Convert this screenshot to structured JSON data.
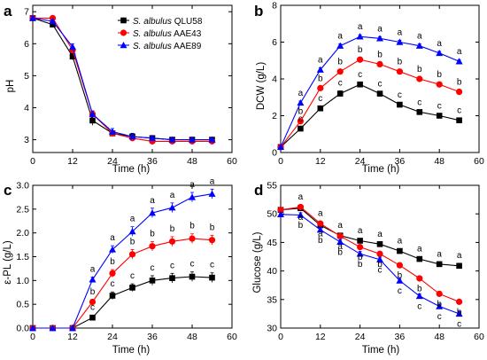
{
  "colors": {
    "QLU58": "#000000",
    "AAE43": "#ff0000",
    "AAE89": "#0000ff"
  },
  "legend": [
    {
      "species": "S. albulus",
      "strain": "QLU58",
      "marker": "square",
      "color": "#000000"
    },
    {
      "species": "S. albulus",
      "strain": "AAE43",
      "marker": "circle",
      "color": "#ff0000"
    },
    {
      "species": "S. albulus",
      "strain": "AAE89",
      "marker": "triangle",
      "color": "#0000ff"
    }
  ],
  "chart_data": [
    {
      "panel": "a",
      "type": "line",
      "xlabel": "Time (h)",
      "ylabel": "pH",
      "xlim": [
        0,
        60
      ],
      "ylim": [
        2.6,
        7.2
      ],
      "xticks": [
        0,
        12,
        24,
        36,
        48,
        60
      ],
      "yticks": [
        3,
        4,
        5,
        6,
        7
      ],
      "x": [
        0,
        6,
        12,
        18,
        24,
        30,
        36,
        42,
        48,
        54
      ],
      "series": [
        {
          "name": "S. albulus QLU58",
          "values": [
            6.8,
            6.6,
            5.6,
            3.6,
            3.2,
            3.1,
            3.05,
            3.0,
            3.0,
            3.0
          ],
          "err": [
            0.05,
            0.05,
            0.1,
            0.15,
            0.08,
            0.1,
            0.05,
            0.05,
            0.05,
            0.05
          ]
        },
        {
          "name": "S. albulus AAE43",
          "values": [
            6.8,
            6.8,
            5.8,
            3.8,
            3.2,
            3.05,
            2.95,
            2.95,
            2.95,
            2.95
          ],
          "err": [
            0.05,
            0.05,
            0.1,
            0.1,
            0.08,
            0.08,
            0.05,
            0.05,
            0.05,
            0.05
          ]
        },
        {
          "name": "S. albulus AAE89",
          "values": [
            6.8,
            6.7,
            5.9,
            3.8,
            3.25,
            3.1,
            3.05,
            3.0,
            3.0,
            3.0
          ],
          "err": [
            0.05,
            0.05,
            0.1,
            0.1,
            0.1,
            0.08,
            0.05,
            0.05,
            0.05,
            0.05
          ]
        }
      ],
      "annotations": []
    },
    {
      "panel": "b",
      "type": "line",
      "xlabel": "Time (h)",
      "ylabel": "DCW (g/L)",
      "xlim": [
        0,
        60
      ],
      "ylim": [
        0,
        8
      ],
      "xticks": [
        0,
        12,
        24,
        36,
        48,
        60
      ],
      "yticks": [
        0,
        2,
        4,
        6,
        8
      ],
      "x": [
        0,
        6,
        12,
        18,
        24,
        30,
        36,
        42,
        48,
        54
      ],
      "series": [
        {
          "name": "S. albulus QLU58",
          "values": [
            0.3,
            1.3,
            2.4,
            3.2,
            3.7,
            3.2,
            2.6,
            2.2,
            2.0,
            1.75
          ],
          "err": [
            0.05,
            0.1,
            0.1,
            0.15,
            0.1,
            0.1,
            0.1,
            0.1,
            0.1,
            0.1
          ]
        },
        {
          "name": "S. albulus AAE43",
          "values": [
            0.3,
            1.7,
            3.5,
            4.4,
            5.05,
            4.8,
            4.4,
            4.0,
            3.7,
            3.3
          ],
          "err": [
            0.05,
            0.1,
            0.1,
            0.1,
            0.1,
            0.1,
            0.1,
            0.1,
            0.1,
            0.1
          ]
        },
        {
          "name": "S. albulus AAE89",
          "values": [
            0.3,
            2.7,
            4.5,
            5.8,
            6.3,
            6.2,
            6.0,
            5.8,
            5.4,
            4.95
          ],
          "err": [
            0.05,
            0.1,
            0.1,
            0.1,
            0.1,
            0.1,
            0.1,
            0.1,
            0.1,
            0.1
          ]
        }
      ],
      "annotations": [
        {
          "x": 6,
          "labels": [
            "a",
            "b",
            "c"
          ]
        },
        {
          "x": 12,
          "labels": [
            "a",
            "b",
            "c"
          ]
        },
        {
          "x": 18,
          "labels": [
            "a",
            "b",
            "c"
          ]
        },
        {
          "x": 24,
          "labels": [
            "a",
            "b",
            "c"
          ]
        },
        {
          "x": 30,
          "labels": [
            "a",
            "b",
            "c"
          ]
        },
        {
          "x": 36,
          "labels": [
            "a",
            "b",
            "c"
          ]
        },
        {
          "x": 42,
          "labels": [
            "a",
            "b",
            "c"
          ]
        },
        {
          "x": 48,
          "labels": [
            "a",
            "b",
            "c"
          ]
        },
        {
          "x": 54,
          "labels": [
            "a",
            "b",
            "c"
          ]
        }
      ]
    },
    {
      "panel": "c",
      "type": "line",
      "xlabel": "Time (h)",
      "ylabel": "ε-PL (g/L)",
      "xlim": [
        0,
        60
      ],
      "ylim": [
        0,
        3
      ],
      "xticks": [
        0,
        12,
        24,
        36,
        48,
        60
      ],
      "yticks": [
        0,
        0.5,
        1,
        1.5,
        2,
        2.5,
        3
      ],
      "ytickLabels": [
        "0.0",
        "0.5",
        "1.0",
        "1.5",
        "2.0",
        "2.5",
        "3.0"
      ],
      "x": [
        0,
        6,
        12,
        18,
        24,
        30,
        36,
        42,
        48,
        54
      ],
      "series": [
        {
          "name": "S. albulus QLU58",
          "values": [
            0,
            0,
            0,
            0.22,
            0.68,
            0.85,
            1.0,
            1.05,
            1.08,
            1.06
          ],
          "err": [
            0,
            0,
            0,
            0.05,
            0.08,
            0.08,
            0.1,
            0.1,
            0.1,
            0.1
          ]
        },
        {
          "name": "S. albulus AAE43",
          "values": [
            0,
            0,
            0,
            0.55,
            1.15,
            1.55,
            1.72,
            1.82,
            1.88,
            1.85
          ],
          "err": [
            0,
            0,
            0,
            0.05,
            0.08,
            0.1,
            0.1,
            0.1,
            0.1,
            0.1
          ]
        },
        {
          "name": "S. albulus AAE89",
          "values": [
            0,
            0,
            0,
            1.02,
            1.65,
            2.03,
            2.42,
            2.53,
            2.75,
            2.82
          ],
          "err": [
            0,
            0,
            0,
            0.05,
            0.08,
            0.1,
            0.1,
            0.1,
            0.1,
            0.1
          ]
        }
      ],
      "annotations": [
        {
          "x": 18,
          "labels": [
            "a",
            "b",
            "c"
          ]
        },
        {
          "x": 24,
          "labels": [
            "a",
            "b",
            "c"
          ]
        },
        {
          "x": 30,
          "labels": [
            "a",
            "b",
            "c"
          ]
        },
        {
          "x": 36,
          "labels": [
            "a",
            "b",
            "c"
          ]
        },
        {
          "x": 42,
          "labels": [
            "a",
            "b",
            "c"
          ]
        },
        {
          "x": 48,
          "labels": [
            "a",
            "b",
            "c"
          ]
        },
        {
          "x": 54,
          "labels": [
            "a",
            "b",
            "c"
          ]
        }
      ]
    },
    {
      "panel": "d",
      "type": "line",
      "xlabel": "Time (h)",
      "ylabel": "Glucose (g/L)",
      "xlim": [
        0,
        60
      ],
      "ylim": [
        30,
        55
      ],
      "xticks": [
        0,
        12,
        24,
        36,
        48,
        60
      ],
      "yticks": [
        30,
        35,
        40,
        45,
        50,
        55
      ],
      "x": [
        0,
        6,
        12,
        18,
        24,
        30,
        36,
        42,
        48,
        54
      ],
      "series": [
        {
          "name": "S. albulus QLU58",
          "values": [
            50.7,
            51.0,
            48.0,
            46.2,
            45.3,
            44.7,
            43.5,
            42.1,
            41.2,
            40.9
          ],
          "err": [
            0.3,
            0.4,
            0.4,
            0.4,
            0.4,
            0.4,
            0.4,
            0.4,
            0.4,
            0.4
          ]
        },
        {
          "name": "S. albulus AAE43",
          "values": [
            50.7,
            51.2,
            48.3,
            46.1,
            44.2,
            43.0,
            41.0,
            38.7,
            36.0,
            34.6
          ],
          "err": [
            0.3,
            0.4,
            0.4,
            0.4,
            0.4,
            0.4,
            0.4,
            0.4,
            0.4,
            0.4
          ]
        },
        {
          "name": "S. albulus AAE89",
          "values": [
            49.9,
            49.8,
            47.2,
            45.1,
            43.0,
            42.0,
            38.3,
            35.6,
            33.8,
            32.5
          ],
          "err": [
            0.3,
            0.4,
            0.4,
            0.4,
            0.4,
            0.4,
            0.4,
            0.4,
            0.4,
            0.4
          ]
        }
      ],
      "annotations": [
        {
          "x": 6,
          "labels": [
            "a",
            "a",
            "b"
          ]
        },
        {
          "x": 12,
          "labels": [
            "a",
            "a",
            "b"
          ]
        },
        {
          "x": 18,
          "labels": [
            "a",
            "a",
            "b"
          ]
        },
        {
          "x": 24,
          "labels": [
            "a",
            "b",
            "b"
          ]
        },
        {
          "x": 30,
          "labels": [
            "a",
            "b",
            "c"
          ]
        },
        {
          "x": 36,
          "labels": [
            "a",
            "b",
            "c"
          ]
        },
        {
          "x": 42,
          "labels": [
            "a",
            "b",
            "c"
          ]
        },
        {
          "x": 48,
          "labels": [
            "a",
            "b",
            "c"
          ]
        },
        {
          "x": 54,
          "labels": [
            "a",
            "b",
            "c"
          ]
        }
      ]
    }
  ]
}
